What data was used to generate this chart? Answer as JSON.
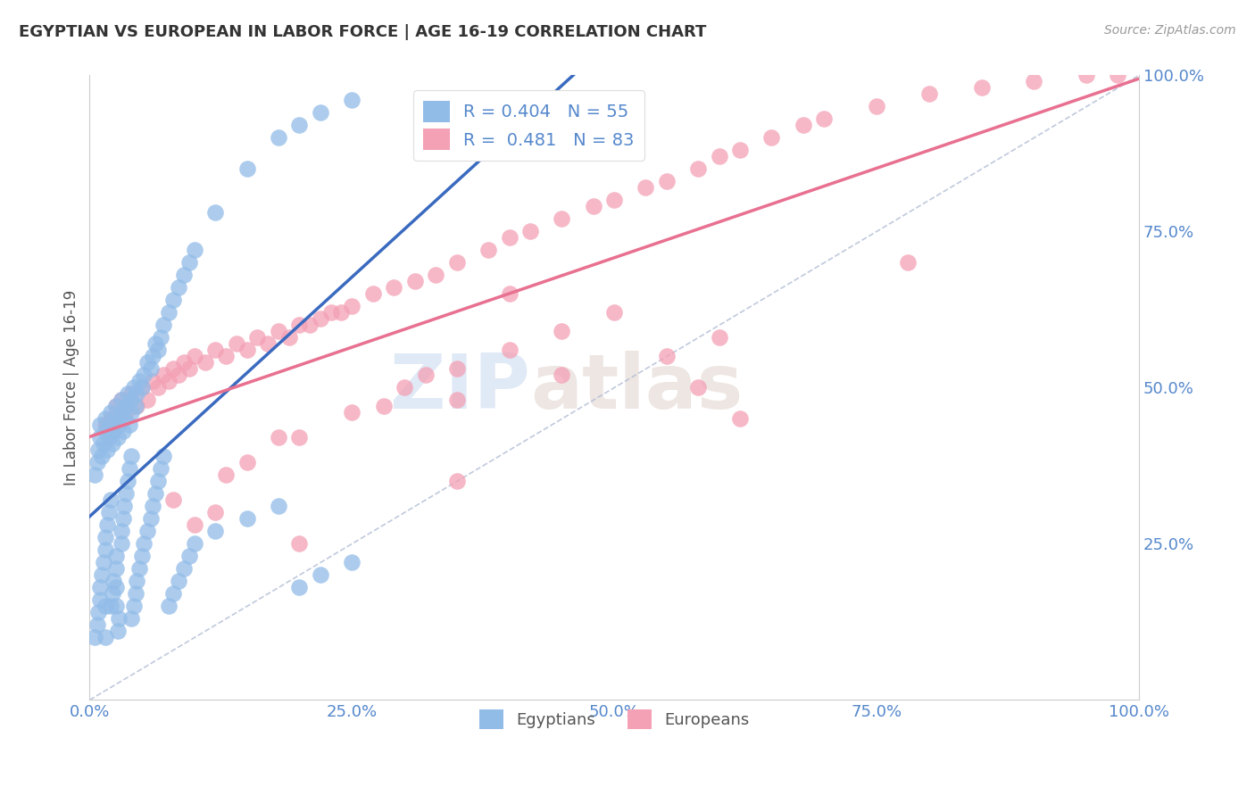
{
  "title": "EGYPTIAN VS EUROPEAN IN LABOR FORCE | AGE 16-19 CORRELATION CHART",
  "source": "Source: ZipAtlas.com",
  "ylabel": "In Labor Force | Age 16-19",
  "watermark_zip": "ZIP",
  "watermark_atlas": "atlas",
  "legend_r_egyptian": "0.404",
  "legend_n_egyptian": "55",
  "legend_r_european": "0.481",
  "legend_n_european": "83",
  "egyptian_color": "#92bce8",
  "european_color": "#f4a0b5",
  "egyptian_line_color": "#3a6abf",
  "european_line_color": "#e87090",
  "ref_line_color": "#b0bcd4",
  "background_color": "#ffffff",
  "grid_color": "#cccccc",
  "tick_color": "#5588cc",
  "xlim": [
    0.0,
    1.0
  ],
  "ylim": [
    0.0,
    1.0
  ],
  "xtick_vals": [
    0.0,
    0.25,
    0.5,
    0.75,
    1.0
  ],
  "xtick_labels": [
    "0.0%",
    "25.0%",
    "50.0%",
    "75.0%",
    "100.0%"
  ],
  "ytick_vals": [
    0.25,
    0.5,
    0.75,
    1.0
  ],
  "ytick_labels": [
    "25.0%",
    "50.0%",
    "75.0%",
    "100.0%"
  ],
  "egyptian_x": [
    0.005,
    0.007,
    0.008,
    0.01,
    0.01,
    0.012,
    0.013,
    0.015,
    0.015,
    0.017,
    0.018,
    0.02,
    0.02,
    0.022,
    0.023,
    0.025,
    0.025,
    0.027,
    0.028,
    0.03,
    0.03,
    0.032,
    0.033,
    0.035,
    0.036,
    0.038,
    0.04,
    0.04,
    0.042,
    0.044,
    0.045,
    0.047,
    0.05,
    0.052,
    0.055,
    0.058,
    0.06,
    0.063,
    0.065,
    0.068,
    0.07,
    0.075,
    0.08,
    0.085,
    0.09,
    0.095,
    0.1,
    0.12,
    0.15,
    0.18,
    0.2,
    0.22,
    0.25,
    0.015,
    0.025
  ],
  "egyptian_y": [
    0.36,
    0.38,
    0.4,
    0.42,
    0.44,
    0.39,
    0.41,
    0.43,
    0.45,
    0.4,
    0.42,
    0.44,
    0.46,
    0.41,
    0.43,
    0.45,
    0.47,
    0.42,
    0.44,
    0.46,
    0.48,
    0.43,
    0.45,
    0.47,
    0.49,
    0.44,
    0.46,
    0.48,
    0.5,
    0.47,
    0.49,
    0.51,
    0.5,
    0.52,
    0.54,
    0.53,
    0.55,
    0.57,
    0.56,
    0.58,
    0.6,
    0.62,
    0.64,
    0.66,
    0.68,
    0.7,
    0.72,
    0.78,
    0.85,
    0.9,
    0.92,
    0.94,
    0.96,
    0.1,
    0.15
  ],
  "egyptian_low_y": [
    0.1,
    0.12,
    0.14,
    0.16,
    0.18,
    0.2,
    0.22,
    0.24,
    0.26,
    0.28,
    0.3,
    0.32,
    0.15,
    0.17,
    0.19,
    0.21,
    0.23,
    0.11,
    0.13,
    0.25,
    0.27,
    0.29,
    0.31,
    0.33,
    0.35,
    0.37,
    0.39,
    0.13,
    0.15,
    0.17,
    0.19,
    0.21,
    0.23,
    0.25,
    0.27,
    0.29,
    0.31,
    0.33,
    0.35,
    0.37,
    0.39,
    0.15,
    0.17,
    0.19,
    0.21,
    0.23,
    0.25,
    0.27,
    0.29,
    0.31,
    0.18,
    0.2,
    0.22,
    0.15,
    0.18
  ],
  "egyptian_low_x": [
    0.005,
    0.007,
    0.008,
    0.01,
    0.01,
    0.012,
    0.013,
    0.015,
    0.015,
    0.017,
    0.018,
    0.02,
    0.02,
    0.022,
    0.023,
    0.025,
    0.025,
    0.027,
    0.028,
    0.03,
    0.03,
    0.032,
    0.033,
    0.035,
    0.036,
    0.038,
    0.04,
    0.04,
    0.042,
    0.044,
    0.045,
    0.047,
    0.05,
    0.052,
    0.055,
    0.058,
    0.06,
    0.063,
    0.065,
    0.068,
    0.07,
    0.075,
    0.08,
    0.085,
    0.09,
    0.095,
    0.1,
    0.12,
    0.15,
    0.18,
    0.2,
    0.22,
    0.25,
    0.015,
    0.025
  ],
  "european_x": [
    0.015,
    0.02,
    0.025,
    0.03,
    0.035,
    0.04,
    0.045,
    0.05,
    0.055,
    0.06,
    0.065,
    0.07,
    0.075,
    0.08,
    0.085,
    0.09,
    0.095,
    0.1,
    0.11,
    0.12,
    0.13,
    0.14,
    0.15,
    0.16,
    0.17,
    0.18,
    0.19,
    0.2,
    0.21,
    0.22,
    0.23,
    0.24,
    0.25,
    0.27,
    0.29,
    0.31,
    0.33,
    0.35,
    0.38,
    0.4,
    0.42,
    0.45,
    0.48,
    0.5,
    0.53,
    0.55,
    0.58,
    0.6,
    0.62,
    0.65,
    0.68,
    0.7,
    0.75,
    0.8,
    0.85,
    0.9,
    0.95,
    0.98,
    0.2,
    0.25,
    0.3,
    0.35,
    0.4,
    0.45,
    0.5,
    0.28,
    0.32,
    0.15,
    0.13,
    0.08,
    0.55,
    0.6,
    0.2,
    0.35,
    0.18,
    0.4,
    0.1,
    0.62,
    0.45,
    0.12,
    0.58,
    0.35,
    0.78
  ],
  "european_y": [
    0.44,
    0.45,
    0.47,
    0.48,
    0.46,
    0.49,
    0.47,
    0.5,
    0.48,
    0.51,
    0.5,
    0.52,
    0.51,
    0.53,
    0.52,
    0.54,
    0.53,
    0.55,
    0.54,
    0.56,
    0.55,
    0.57,
    0.56,
    0.58,
    0.57,
    0.59,
    0.58,
    0.6,
    0.6,
    0.61,
    0.62,
    0.62,
    0.63,
    0.65,
    0.66,
    0.67,
    0.68,
    0.7,
    0.72,
    0.74,
    0.75,
    0.77,
    0.79,
    0.8,
    0.82,
    0.83,
    0.85,
    0.87,
    0.88,
    0.9,
    0.92,
    0.93,
    0.95,
    0.97,
    0.98,
    0.99,
    1.0,
    1.0,
    0.42,
    0.46,
    0.5,
    0.53,
    0.56,
    0.59,
    0.62,
    0.47,
    0.52,
    0.38,
    0.36,
    0.32,
    0.55,
    0.58,
    0.25,
    0.35,
    0.42,
    0.65,
    0.28,
    0.45,
    0.52,
    0.3,
    0.5,
    0.48,
    0.7
  ]
}
